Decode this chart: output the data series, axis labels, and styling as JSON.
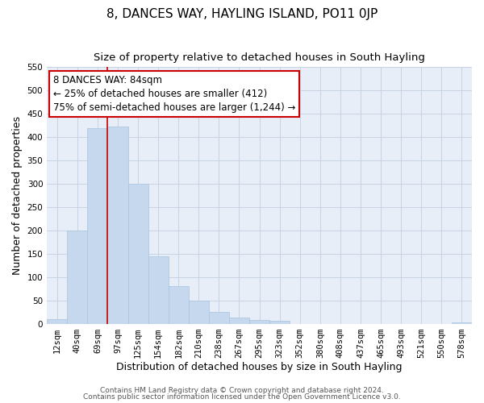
{
  "title": "8, DANCES WAY, HAYLING ISLAND, PO11 0JP",
  "subtitle": "Size of property relative to detached houses in South Hayling",
  "xlabel": "Distribution of detached houses by size in South Hayling",
  "ylabel": "Number of detached properties",
  "bar_color": "#c5d8ed",
  "bar_edge_color": "#a8c4de",
  "grid_color": "#c8d4e4",
  "background_color": "#e8eef8",
  "annotation_box_color": "#cc0000",
  "vline_color": "#cc0000",
  "bin_labels": [
    "12sqm",
    "40sqm",
    "69sqm",
    "97sqm",
    "125sqm",
    "154sqm",
    "182sqm",
    "210sqm",
    "238sqm",
    "267sqm",
    "295sqm",
    "323sqm",
    "352sqm",
    "380sqm",
    "408sqm",
    "437sqm",
    "465sqm",
    "493sqm",
    "521sqm",
    "550sqm",
    "578sqm"
  ],
  "bar_heights": [
    10,
    200,
    420,
    422,
    300,
    145,
    80,
    50,
    25,
    13,
    8,
    6,
    0,
    0,
    0,
    0,
    0,
    0,
    0,
    0,
    3
  ],
  "ylim": [
    0,
    550
  ],
  "yticks": [
    0,
    50,
    100,
    150,
    200,
    250,
    300,
    350,
    400,
    450,
    500,
    550
  ],
  "vline_x": 2.5,
  "annotation_title": "8 DANCES WAY: 84sqm",
  "annotation_line1": "← 25% of detached houses are smaller (412)",
  "annotation_line2": "75% of semi-detached houses are larger (1,244) →",
  "footer_line1": "Contains HM Land Registry data © Crown copyright and database right 2024.",
  "footer_line2": "Contains public sector information licensed under the Open Government Licence v3.0.",
  "title_fontsize": 11,
  "subtitle_fontsize": 9.5,
  "axis_label_fontsize": 9,
  "tick_fontsize": 7.5,
  "annotation_fontsize": 8.5,
  "footer_fontsize": 6.5
}
